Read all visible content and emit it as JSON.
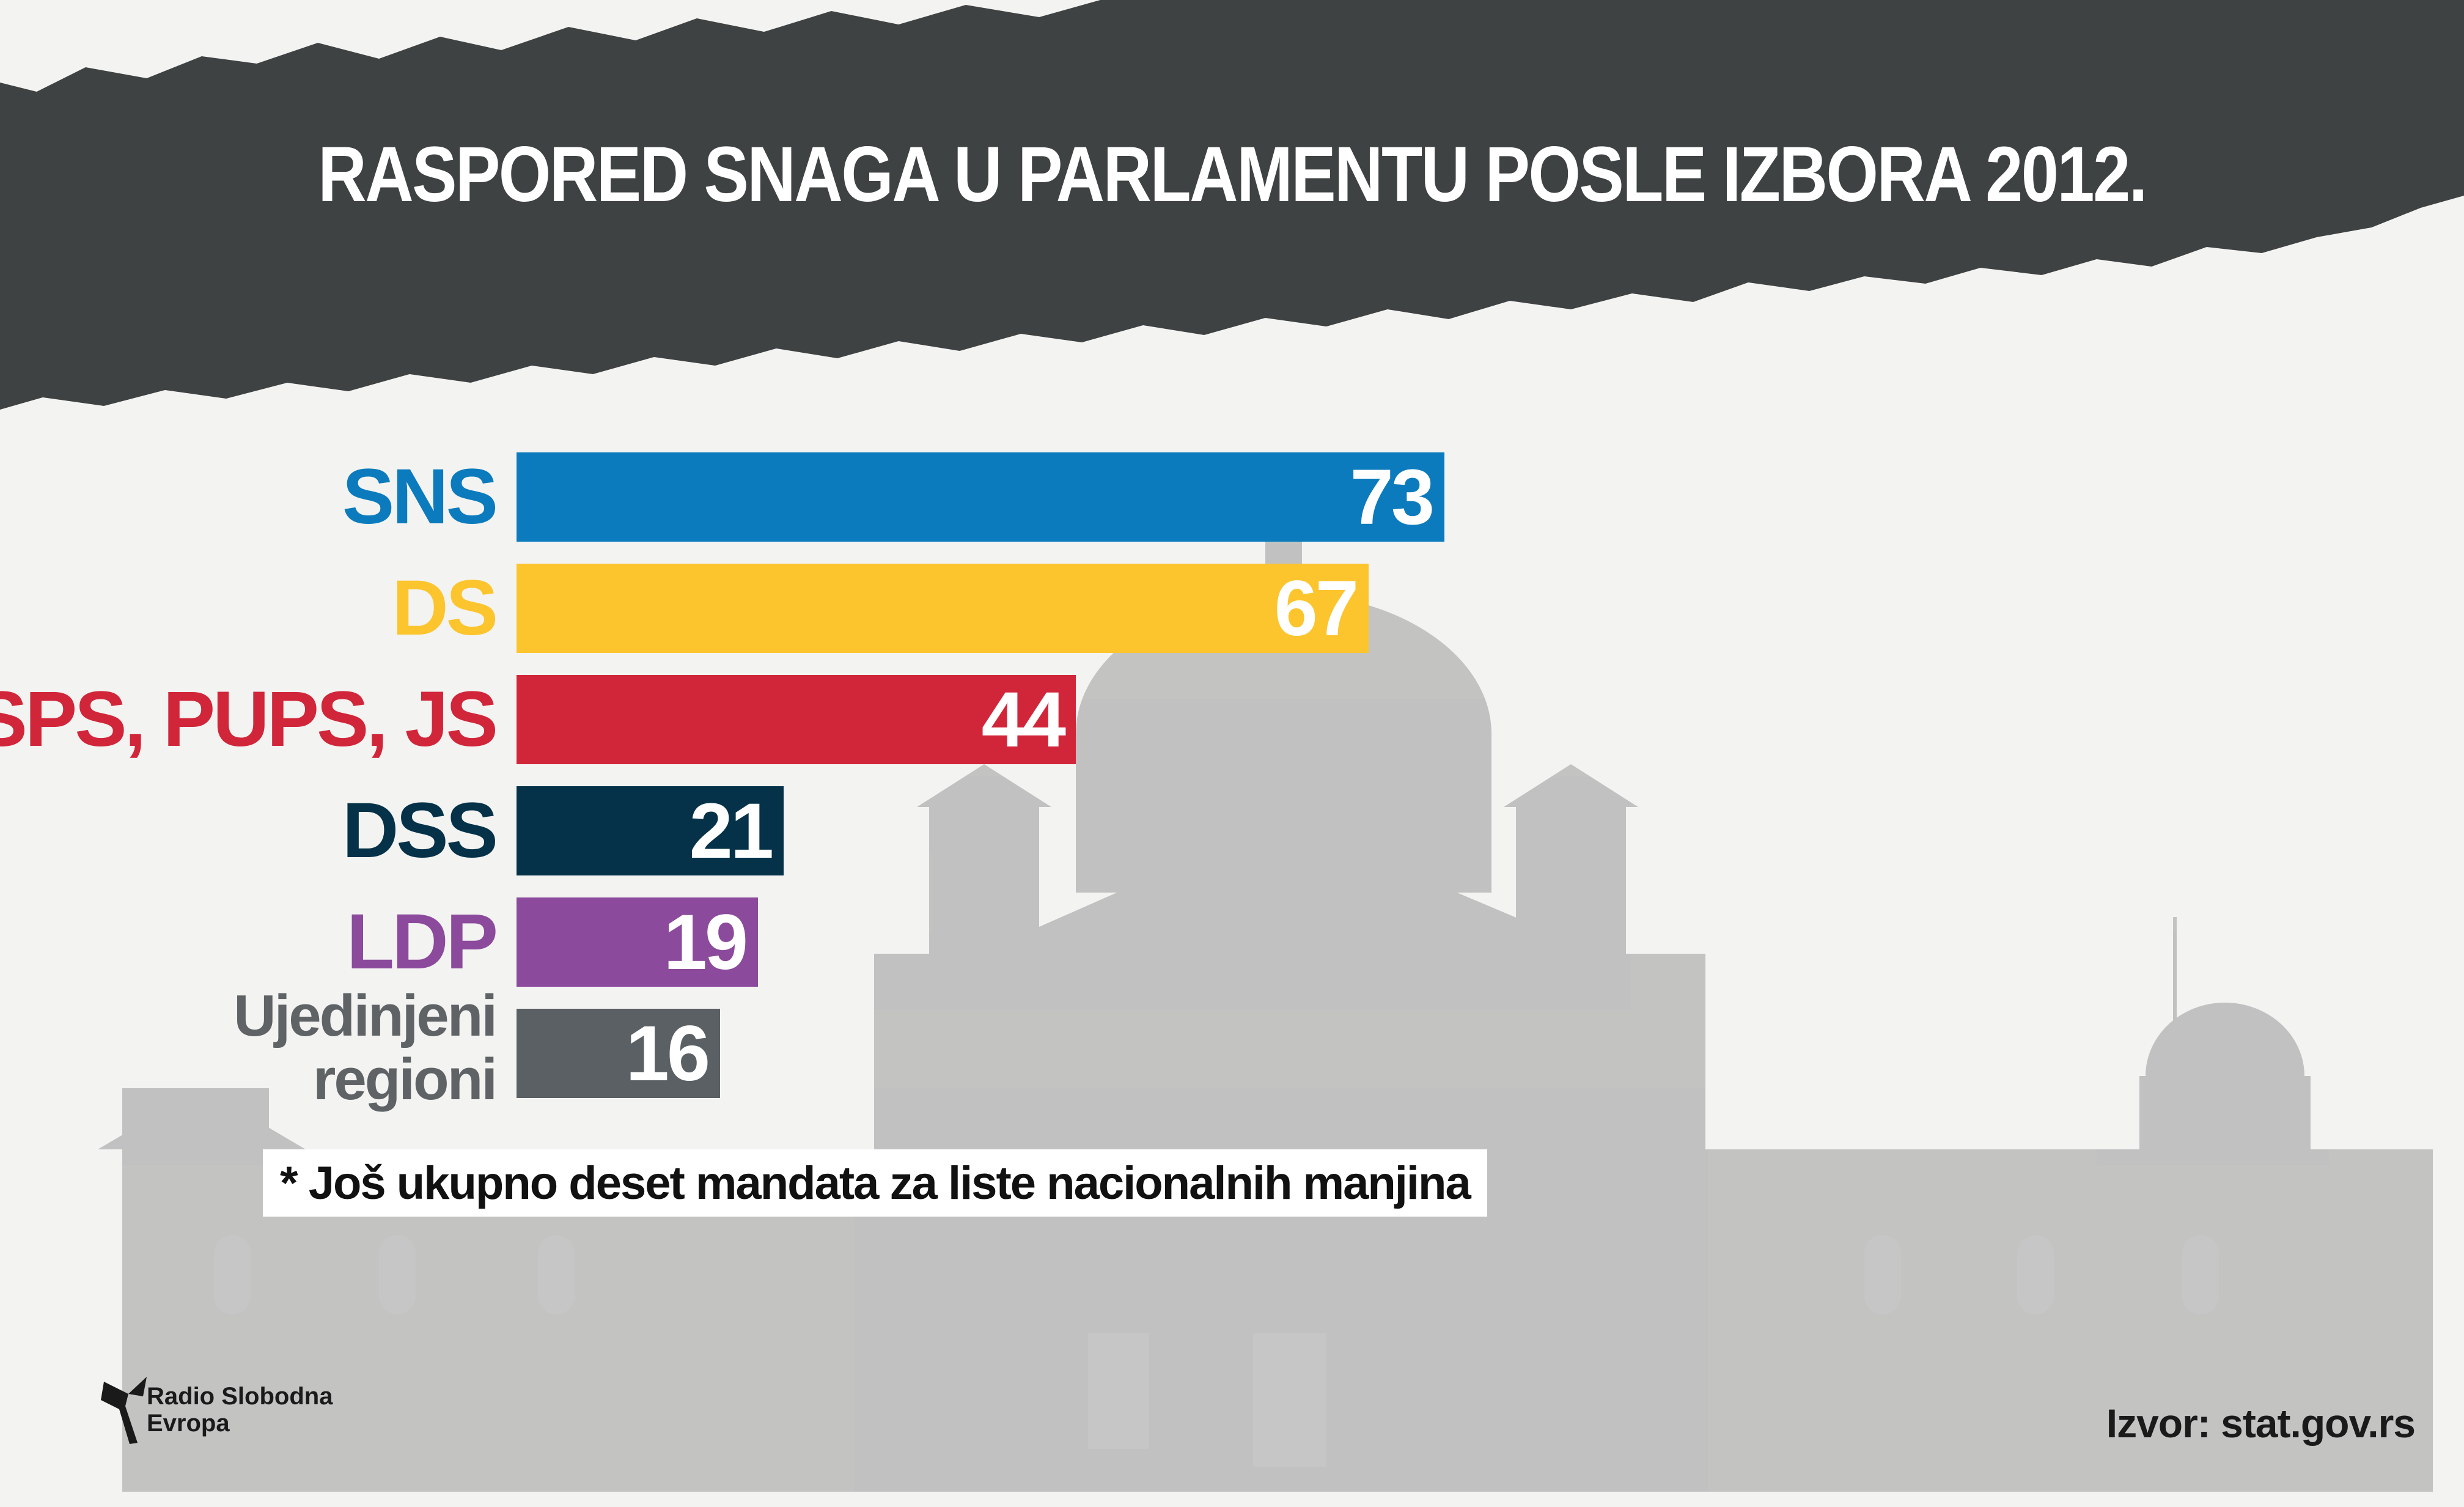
{
  "header": {
    "title": "RASPORED SNAGA U PARLAMENTU POSLE IZBORA 2012."
  },
  "chart_data": {
    "type": "bar",
    "orientation": "horizontal",
    "title": "RASPORED SNAGA U PARLAMENTU POSLE IZBORA 2012.",
    "categories": [
      "SNS",
      "DS",
      "SPS, PUPS, JS",
      "DSS",
      "LDP",
      "Ujedinjeni regioni"
    ],
    "values": [
      73,
      67,
      44,
      21,
      19,
      16
    ],
    "colors": [
      "#0b7bbd",
      "#fcc52e",
      "#d1263a",
      "#053249",
      "#8b4a9c",
      "#5b6064"
    ],
    "label_colors": [
      "#0b7bbd",
      "#fcc52e",
      "#d1263a",
      "#053249",
      "#8b4a9c",
      "#5f6366"
    ],
    "grid": false,
    "legend": "none"
  },
  "footnote": "* Još ukupno deset mandata za liste nacionalnih manjina",
  "branding": {
    "logo_line1": "Radio Slobodna",
    "logo_line2": "Evropa",
    "logo_icon": "rferl-torch-icon"
  },
  "source": "Izvor: stat.gov.rs"
}
